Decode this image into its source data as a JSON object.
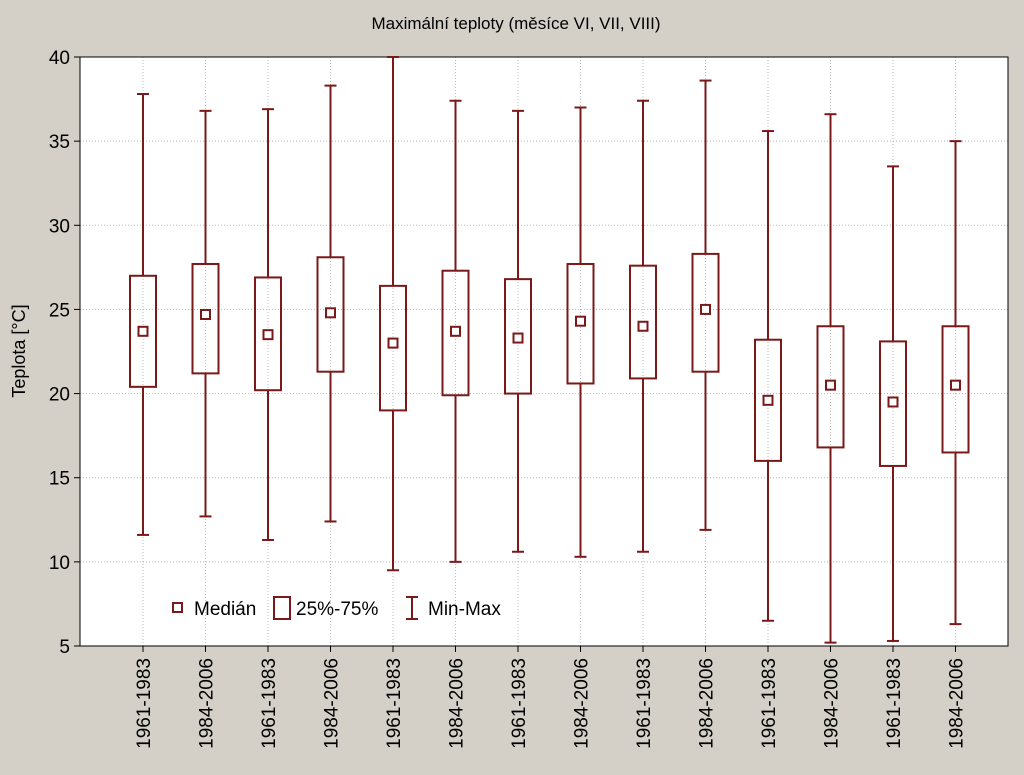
{
  "chart_data": {
    "type": "box",
    "title": "Maximální teploty (měsíce VI, VII, VIII)",
    "xlabel": "",
    "ylabel": "Teplota [°C]",
    "ylim": [
      5,
      40
    ],
    "yticks": [
      5,
      10,
      15,
      20,
      25,
      30,
      35,
      40
    ],
    "grid": true,
    "legend_position": "bottom-left",
    "colors": {
      "box": "#7b1818",
      "background": "#d4d0c8",
      "plot_bg": "#ffffff",
      "grid": "#b8b8b8"
    },
    "legend": {
      "median": "Medián",
      "iqr": "25%-75%",
      "range": "Min-Max"
    },
    "categories": [
      "1961-1983",
      "1984-2006",
      "1961-1983",
      "1984-2006",
      "1961-1983",
      "1984-2006",
      "1961-1983",
      "1984-2006",
      "1961-1983",
      "1984-2006",
      "1961-1983",
      "1984-2006",
      "1961-1983",
      "1984-2006"
    ],
    "boxes": [
      {
        "min": 11.6,
        "q1": 20.4,
        "median": 23.7,
        "q3": 27.0,
        "max": 37.8
      },
      {
        "min": 12.7,
        "q1": 21.2,
        "median": 24.7,
        "q3": 27.7,
        "max": 36.8
      },
      {
        "min": 11.3,
        "q1": 20.2,
        "median": 23.5,
        "q3": 26.9,
        "max": 36.9
      },
      {
        "min": 12.4,
        "q1": 21.3,
        "median": 24.8,
        "q3": 28.1,
        "max": 38.3
      },
      {
        "min": 9.5,
        "q1": 19.0,
        "median": 23.0,
        "q3": 26.4,
        "max": 40.0
      },
      {
        "min": 10.0,
        "q1": 19.9,
        "median": 23.7,
        "q3": 27.3,
        "max": 37.4
      },
      {
        "min": 10.6,
        "q1": 20.0,
        "median": 23.3,
        "q3": 26.8,
        "max": 36.8
      },
      {
        "min": 10.3,
        "q1": 20.6,
        "median": 24.3,
        "q3": 27.7,
        "max": 37.0
      },
      {
        "min": 10.6,
        "q1": 20.9,
        "median": 24.0,
        "q3": 27.6,
        "max": 37.4
      },
      {
        "min": 11.9,
        "q1": 21.3,
        "median": 25.0,
        "q3": 28.3,
        "max": 38.6
      },
      {
        "min": 6.5,
        "q1": 16.0,
        "median": 19.6,
        "q3": 23.2,
        "max": 35.6
      },
      {
        "min": 5.2,
        "q1": 16.8,
        "median": 20.5,
        "q3": 24.0,
        "max": 36.6
      },
      {
        "min": 5.3,
        "q1": 15.7,
        "median": 19.5,
        "q3": 23.1,
        "max": 33.5
      },
      {
        "min": 6.3,
        "q1": 16.5,
        "median": 20.5,
        "q3": 24.0,
        "max": 35.0
      }
    ]
  }
}
